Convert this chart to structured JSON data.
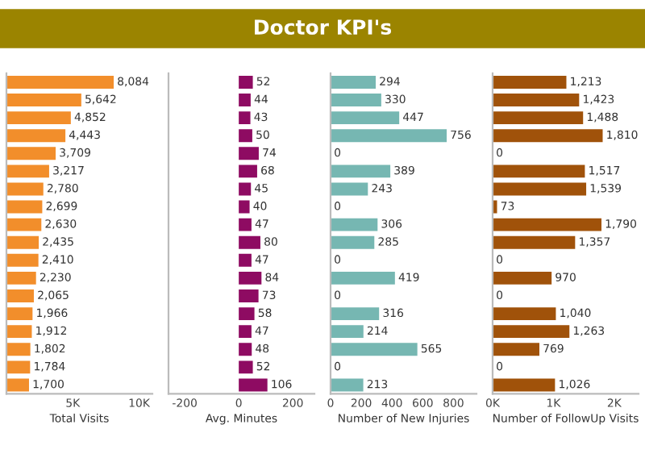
{
  "chart_data": [
    {
      "type": "other",
      "title": "Doctor KPI's"
    },
    {
      "type": "bar",
      "orientation": "horizontal",
      "xlabel": "Total Visits",
      "categories": [
        null,
        null,
        null,
        null,
        null,
        null,
        null,
        null,
        null,
        null,
        null,
        null,
        null,
        null,
        null,
        null,
        null,
        null
      ],
      "series": [
        {
          "color": "#f28e2b",
          "values": [
            8084,
            5642,
            4852,
            4443,
            3709,
            3217,
            2780,
            2699,
            2630,
            2435,
            2410,
            2230,
            2065,
            1966,
            1912,
            1802,
            1784,
            1700
          ],
          "value_labels": [
            "8,084",
            "5,642",
            "4,852",
            "4,443",
            "3,709",
            "3,217",
            "2,780",
            "2,699",
            "2,630",
            "2,435",
            "2,410",
            "2,230",
            "2,065",
            "1,966",
            "1,912",
            "1,802",
            "1,784",
            "1,700"
          ]
        }
      ],
      "xlim": [
        0,
        11000
      ],
      "xticks": [
        {
          "value": 5000,
          "label": "5K"
        },
        {
          "value": 10000,
          "label": "10K"
        }
      ],
      "grid": false,
      "legend": false
    },
    {
      "type": "bar",
      "orientation": "horizontal",
      "xlabel": "Avg. Minutes",
      "categories": [
        null,
        null,
        null,
        null,
        null,
        null,
        null,
        null,
        null,
        null,
        null,
        null,
        null,
        null,
        null,
        null,
        null,
        null
      ],
      "series": [
        {
          "color": "#8e0b62",
          "values": [
            52,
            44,
            43,
            50,
            74,
            68,
            45,
            40,
            47,
            80,
            47,
            84,
            73,
            58,
            47,
            48,
            52,
            106
          ],
          "value_labels": [
            "52",
            "44",
            "43",
            "50",
            "74",
            "68",
            "45",
            "40",
            "47",
            "80",
            "47",
            "84",
            "73",
            "58",
            "47",
            "48",
            "52",
            "106"
          ]
        }
      ],
      "xlim": [
        -260,
        280
      ],
      "xticks": [
        -200,
        0,
        200
      ],
      "grid": false,
      "legend": false
    },
    {
      "type": "bar",
      "orientation": "horizontal",
      "xlabel": "Number of New Injuries",
      "categories": [
        null,
        null,
        null,
        null,
        null,
        null,
        null,
        null,
        null,
        null,
        null,
        null,
        null,
        null,
        null,
        null,
        null,
        null
      ],
      "series": [
        {
          "color": "#76b7b2",
          "values": [
            294,
            330,
            447,
            756,
            0,
            389,
            243,
            0,
            306,
            285,
            0,
            419,
            0,
            316,
            214,
            565,
            0,
            213
          ],
          "value_labels": [
            "294",
            "330",
            "447",
            "756",
            "0",
            "389",
            "243",
            "0",
            "306",
            "285",
            "0",
            "419",
            "0",
            "316",
            "214",
            "565",
            "0",
            "213"
          ]
        }
      ],
      "xlim": [
        0,
        950
      ],
      "xticks": [
        0,
        200,
        400,
        600,
        800
      ],
      "grid": false,
      "legend": false
    },
    {
      "type": "bar",
      "orientation": "horizontal",
      "xlabel": "Number of FollowUp Visits",
      "categories": [
        null,
        null,
        null,
        null,
        null,
        null,
        null,
        null,
        null,
        null,
        null,
        null,
        null,
        null,
        null,
        null,
        null,
        null
      ],
      "series": [
        {
          "color": "#a0520a",
          "values": [
            1213,
            1423,
            1488,
            1810,
            0,
            1517,
            1539,
            73,
            1790,
            1357,
            0,
            970,
            0,
            1040,
            1263,
            769,
            0,
            1026
          ],
          "value_labels": [
            "1,213",
            "1,423",
            "1,488",
            "1,810",
            "0",
            "1,517",
            "1,539",
            "73",
            "1,790",
            "1,357",
            "0",
            "970",
            "0",
            "1,040",
            "1,263",
            "769",
            "0",
            "1,026"
          ]
        }
      ],
      "xlim": [
        0,
        2400
      ],
      "xticks": [
        {
          "value": 0,
          "label": "0K"
        },
        {
          "value": 1000,
          "label": "1K"
        },
        {
          "value": 2000,
          "label": "2K"
        }
      ],
      "grid": false,
      "legend": false
    }
  ]
}
